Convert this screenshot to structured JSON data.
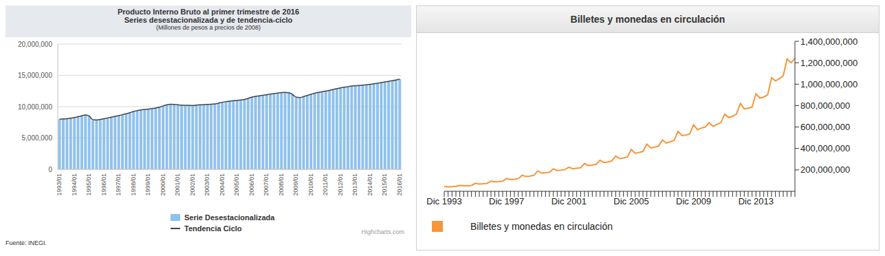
{
  "chart_data": [
    {
      "type": "bar",
      "title": "Producto Interno Bruto al primer trimestre de 2016",
      "subtitle": "Series desestacionalizada y de tendencia-ciclo",
      "y_label": "(Millones de pesos a precios de 2008)",
      "source": "Fuente: INEGI.",
      "credits": "Highcharts.com",
      "categories": [
        "1993/01",
        null,
        null,
        null,
        "1994/01",
        null,
        null,
        null,
        "1995/01",
        null,
        null,
        null,
        "1996/01",
        null,
        null,
        null,
        "1997/01",
        null,
        null,
        null,
        "1998/01",
        null,
        null,
        null,
        "1999/01",
        null,
        null,
        null,
        "2000/01",
        null,
        null,
        null,
        "2001/01",
        null,
        null,
        null,
        "2002/01",
        null,
        null,
        null,
        "2003/01",
        null,
        null,
        null,
        "2004/01",
        null,
        null,
        null,
        "2005/01",
        null,
        null,
        null,
        "2006/01",
        null,
        null,
        null,
        "2007/01",
        null,
        null,
        null,
        "2008/01",
        null,
        null,
        null,
        "2009/01",
        null,
        null,
        null,
        "2010/01",
        null,
        null,
        null,
        "2011/01",
        null,
        null,
        null,
        "2012/01",
        null,
        null,
        null,
        "2013/01",
        null,
        null,
        null,
        "2014/01",
        null,
        null,
        null,
        "2015/01",
        null,
        null,
        null,
        "2016/01"
      ],
      "series": [
        {
          "name": "Serie Desestacionalizada",
          "type": "bar",
          "color": "#8fc1ee",
          "values": [
            8000000,
            8030000,
            8080000,
            8150000,
            8250000,
            8400000,
            8520000,
            8700000,
            8450000,
            7800000,
            7850000,
            7950000,
            8080000,
            8200000,
            8320000,
            8450000,
            8580000,
            8720000,
            8880000,
            9020000,
            9250000,
            9380000,
            9480000,
            9550000,
            9600000,
            9680000,
            9780000,
            9900000,
            10100000,
            10300000,
            10400000,
            10380000,
            10300000,
            10250000,
            10200000,
            10220000,
            10180000,
            10250000,
            10300000,
            10320000,
            10350000,
            10380000,
            10420000,
            10550000,
            10700000,
            10820000,
            10880000,
            10950000,
            11000000,
            11050000,
            11150000,
            11300000,
            11550000,
            11650000,
            11720000,
            11820000,
            11900000,
            12000000,
            12100000,
            12180000,
            12250000,
            12300000,
            12270000,
            12000000,
            11450000,
            11380000,
            11600000,
            11800000,
            11980000,
            12150000,
            12280000,
            12400000,
            12500000,
            12620000,
            12750000,
            12880000,
            13000000,
            13100000,
            13200000,
            13300000,
            13350000,
            13380000,
            13420000,
            13480000,
            13550000,
            13650000,
            13750000,
            13850000,
            13950000,
            14050000,
            14150000,
            14250000,
            14400000
          ]
        },
        {
          "name": "Tendencia Ciclo",
          "type": "line",
          "color": "#434348",
          "values": [
            8000000,
            8040000,
            8090000,
            8160000,
            8260000,
            8400000,
            8540000,
            8680000,
            8500000,
            7900000,
            7880000,
            7960000,
            8080000,
            8200000,
            8320000,
            8450000,
            8580000,
            8720000,
            8880000,
            9030000,
            9240000,
            9370000,
            9470000,
            9550000,
            9610000,
            9690000,
            9790000,
            9920000,
            10120000,
            10300000,
            10380000,
            10360000,
            10300000,
            10240000,
            10210000,
            10210000,
            10200000,
            10250000,
            10300000,
            10320000,
            10350000,
            10390000,
            10440000,
            10560000,
            10700000,
            10810000,
            10880000,
            10950000,
            11000000,
            11060000,
            11160000,
            11320000,
            11540000,
            11650000,
            11730000,
            11820000,
            11900000,
            12000000,
            12100000,
            12180000,
            12250000,
            12280000,
            12230000,
            11950000,
            11500000,
            11450000,
            11620000,
            11800000,
            11980000,
            12150000,
            12280000,
            12400000,
            12500000,
            12620000,
            12750000,
            12880000,
            13000000,
            13100000,
            13200000,
            13290000,
            13350000,
            13390000,
            13430000,
            13490000,
            13560000,
            13650000,
            13750000,
            13850000,
            13950000,
            14050000,
            14150000,
            14260000,
            14400000
          ]
        }
      ],
      "ylim": [
        0,
        20000000
      ],
      "yticks": [
        0,
        {
          "value": 5000000,
          "label": "5,000,000"
        },
        {
          "value": 10000000,
          "label": "10,000,000"
        },
        {
          "value": 15000000,
          "label": "15,000,000"
        },
        {
          "value": 20000000,
          "label": "20,000,000"
        }
      ],
      "grid": true,
      "legend": "bottom"
    },
    {
      "type": "line",
      "title": "Billetes y monedas en circulación",
      "categories": [
        "Dic 1993",
        null,
        null,
        null,
        null,
        null,
        null,
        null,
        null,
        null,
        null,
        null,
        null,
        null,
        null,
        null,
        "Dic 1997",
        null,
        null,
        null,
        null,
        null,
        null,
        null,
        null,
        null,
        null,
        null,
        null,
        null,
        null,
        null,
        "Dic 2001",
        null,
        null,
        null,
        null,
        null,
        null,
        null,
        null,
        null,
        null,
        null,
        null,
        null,
        null,
        null,
        "Dic 2005",
        null,
        null,
        null,
        null,
        null,
        null,
        null,
        null,
        null,
        null,
        null,
        null,
        null,
        null,
        null,
        "Dic 2009",
        null,
        null,
        null,
        null,
        null,
        null,
        null,
        null,
        null,
        null,
        null,
        null,
        null,
        null,
        null,
        "Dic 2013",
        null,
        null,
        null,
        null,
        null,
        null,
        null,
        null,
        null,
        null
      ],
      "series": [
        {
          "name": "Billetes y monedas en circulación",
          "color": "#f7953a",
          "values": [
            45000000,
            42000000,
            44000000,
            46000000,
            55000000,
            51000000,
            52000000,
            55000000,
            75000000,
            68000000,
            70000000,
            74000000,
            95000000,
            88000000,
            90000000,
            95000000,
            120000000,
            110000000,
            113000000,
            118000000,
            150000000,
            138000000,
            142000000,
            150000000,
            190000000,
            170000000,
            173000000,
            178000000,
            210000000,
            195000000,
            198000000,
            203000000,
            225000000,
            210000000,
            215000000,
            220000000,
            260000000,
            240000000,
            245000000,
            252000000,
            290000000,
            268000000,
            275000000,
            283000000,
            330000000,
            305000000,
            312000000,
            320000000,
            390000000,
            355000000,
            362000000,
            372000000,
            440000000,
            405000000,
            412000000,
            422000000,
            480000000,
            450000000,
            462000000,
            475000000,
            560000000,
            520000000,
            525000000,
            535000000,
            620000000,
            575000000,
            590000000,
            600000000,
            640000000,
            605000000,
            625000000,
            640000000,
            720000000,
            690000000,
            700000000,
            720000000,
            820000000,
            770000000,
            775000000,
            785000000,
            910000000,
            870000000,
            880000000,
            900000000,
            1060000000,
            1030000000,
            1050000000,
            1080000000,
            1235000000,
            1200000000,
            1240000000
          ]
        }
      ],
      "ylim": [
        0,
        1400000000
      ],
      "yticks": [
        {
          "value": 200000000,
          "label": "200,000,000"
        },
        {
          "value": 400000000,
          "label": "400,000,000"
        },
        {
          "value": 600000000,
          "label": "600,000,000"
        },
        {
          "value": 800000000,
          "label": "800,000,000"
        },
        {
          "value": 1000000000,
          "label": "1,000,000,000"
        },
        {
          "value": 1200000000,
          "label": "1,200,000,000"
        },
        {
          "value": 1400000000,
          "label": "1,400,000,000"
        }
      ],
      "grid": false,
      "legend": "bottom-left"
    }
  ]
}
